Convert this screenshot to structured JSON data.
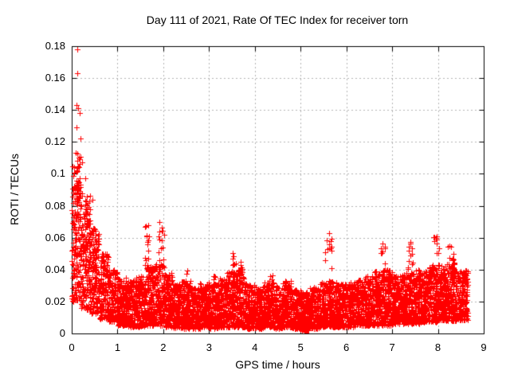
{
  "chart_data": {
    "type": "scatter",
    "title": "Day 111 of 2021, Rate Of TEC Index for receiver torn",
    "xlabel": "GPS time / hours",
    "ylabel": "ROTI / TECUs",
    "xlim": [
      0,
      9
    ],
    "ylim": [
      0,
      0.18
    ],
    "xticks": {
      "values": [
        0,
        1,
        2,
        3,
        4,
        5,
        6,
        7,
        8,
        9
      ],
      "labels": [
        "0",
        "1",
        "2",
        "3",
        "4",
        "5",
        "6",
        "7",
        "8",
        "9"
      ]
    },
    "yticks": {
      "values": [
        0,
        0.02,
        0.04,
        0.06,
        0.08,
        0.1,
        0.12,
        0.14,
        0.16,
        0.18
      ],
      "labels": [
        "0",
        "0.02",
        "0.04",
        "0.06",
        "0.08",
        "0.1",
        "0.12",
        "0.14",
        "0.16",
        "0.18"
      ]
    },
    "grid": "dashed",
    "legend": "none",
    "marker": {
      "symbol": "plus",
      "size": 7,
      "color": "#ff0000"
    },
    "colors": {
      "marker": "#ff0000",
      "grid": "#b3b3b3",
      "frame": "#000000",
      "text": "#000000",
      "background": "#ffffff"
    },
    "data_x_start": 0.0,
    "data_x_end": 8.65,
    "max_point": [
      0.12,
      0.178
    ],
    "seed": 42,
    "band_bins": [
      [
        0.0,
        0.2,
        170,
        0.02,
        0.105
      ],
      [
        0.2,
        0.4,
        160,
        0.015,
        0.088
      ],
      [
        0.4,
        0.6,
        150,
        0.012,
        0.066
      ],
      [
        0.6,
        0.8,
        150,
        0.009,
        0.05
      ],
      [
        0.8,
        1.0,
        150,
        0.007,
        0.04
      ],
      [
        1.0,
        1.2,
        150,
        0.005,
        0.035
      ],
      [
        1.2,
        1.4,
        150,
        0.004,
        0.033
      ],
      [
        1.4,
        1.6,
        150,
        0.004,
        0.036
      ],
      [
        1.6,
        1.8,
        150,
        0.005,
        0.042
      ],
      [
        1.8,
        2.0,
        150,
        0.005,
        0.045
      ],
      [
        2.0,
        2.2,
        150,
        0.004,
        0.038
      ],
      [
        2.2,
        2.4,
        150,
        0.003,
        0.031
      ],
      [
        2.4,
        2.6,
        150,
        0.003,
        0.033
      ],
      [
        2.6,
        2.8,
        150,
        0.003,
        0.029
      ],
      [
        2.8,
        3.0,
        150,
        0.004,
        0.032
      ],
      [
        3.0,
        3.2,
        150,
        0.003,
        0.031
      ],
      [
        3.2,
        3.4,
        150,
        0.004,
        0.035
      ],
      [
        3.4,
        3.6,
        150,
        0.004,
        0.039
      ],
      [
        3.6,
        3.8,
        150,
        0.004,
        0.04
      ],
      [
        3.8,
        4.0,
        150,
        0.003,
        0.031
      ],
      [
        4.0,
        4.2,
        150,
        0.003,
        0.029
      ],
      [
        4.2,
        4.4,
        150,
        0.004,
        0.032
      ],
      [
        4.4,
        4.6,
        150,
        0.003,
        0.03
      ],
      [
        4.6,
        4.8,
        150,
        0.004,
        0.033
      ],
      [
        4.8,
        5.0,
        150,
        0.003,
        0.028
      ],
      [
        5.0,
        5.2,
        150,
        0.002,
        0.026
      ],
      [
        5.2,
        5.4,
        150,
        0.003,
        0.029
      ],
      [
        5.4,
        5.6,
        150,
        0.004,
        0.032
      ],
      [
        5.6,
        5.8,
        150,
        0.004,
        0.033
      ],
      [
        5.8,
        6.0,
        150,
        0.004,
        0.031
      ],
      [
        6.0,
        6.2,
        150,
        0.004,
        0.032
      ],
      [
        6.2,
        6.4,
        150,
        0.005,
        0.034
      ],
      [
        6.4,
        6.6,
        150,
        0.005,
        0.036
      ],
      [
        6.6,
        6.8,
        150,
        0.005,
        0.039
      ],
      [
        6.8,
        7.0,
        150,
        0.005,
        0.04
      ],
      [
        7.0,
        7.2,
        150,
        0.006,
        0.036
      ],
      [
        7.2,
        7.4,
        150,
        0.006,
        0.038
      ],
      [
        7.4,
        7.6,
        150,
        0.006,
        0.04
      ],
      [
        7.6,
        7.8,
        150,
        0.007,
        0.039
      ],
      [
        7.8,
        8.0,
        160,
        0.007,
        0.043
      ],
      [
        8.0,
        8.2,
        160,
        0.008,
        0.043
      ],
      [
        8.2,
        8.4,
        170,
        0.008,
        0.044
      ],
      [
        8.4,
        8.65,
        170,
        0.008,
        0.04
      ]
    ],
    "spike_clusters": [
      [
        0.15,
        0.06,
        0.078,
        0.115,
        18
      ],
      [
        0.35,
        0.06,
        0.055,
        0.08,
        12
      ],
      [
        0.55,
        0.05,
        0.045,
        0.063,
        8
      ],
      [
        1.65,
        0.06,
        0.04,
        0.068,
        16
      ],
      [
        1.95,
        0.07,
        0.04,
        0.067,
        16
      ],
      [
        2.5,
        0.03,
        0.03,
        0.04,
        6
      ],
      [
        3.1,
        0.04,
        0.03,
        0.04,
        6
      ],
      [
        3.55,
        0.05,
        0.036,
        0.052,
        10
      ],
      [
        3.72,
        0.04,
        0.034,
        0.047,
        8
      ],
      [
        4.35,
        0.04,
        0.028,
        0.037,
        6
      ],
      [
        5.6,
        0.08,
        0.04,
        0.063,
        12
      ],
      [
        6.8,
        0.05,
        0.038,
        0.057,
        10
      ],
      [
        7.4,
        0.06,
        0.038,
        0.06,
        12
      ],
      [
        7.95,
        0.07,
        0.04,
        0.061,
        14
      ],
      [
        8.3,
        0.08,
        0.038,
        0.055,
        12
      ]
    ],
    "outliers": [
      [
        0.12,
        0.178
      ],
      [
        0.12,
        0.163
      ],
      [
        0.1,
        0.143
      ],
      [
        0.14,
        0.141
      ],
      [
        0.17,
        0.138
      ],
      [
        0.1,
        0.129
      ],
      [
        0.2,
        0.122
      ],
      [
        0.08,
        0.113
      ],
      [
        0.16,
        0.11
      ],
      [
        0.22,
        0.107
      ],
      [
        0.3,
        0.097
      ],
      [
        0.06,
        0.092
      ],
      [
        0.45,
        0.084
      ],
      [
        1.92,
        0.07
      ],
      [
        5.62,
        0.063
      ]
    ]
  }
}
